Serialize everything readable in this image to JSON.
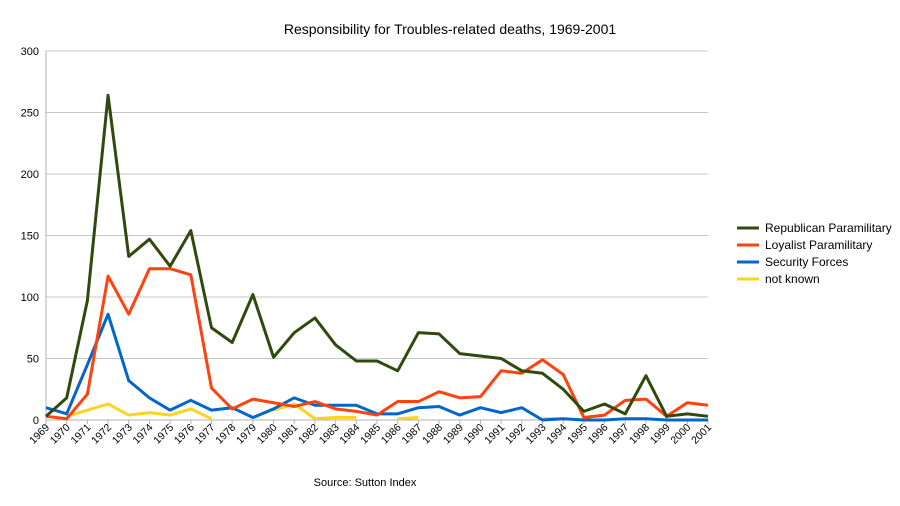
{
  "chart_data": {
    "type": "line",
    "title": "Responsibility for Troubles-related deaths, 1969-2001",
    "source": "Source: Sutton Index",
    "xlabel": "",
    "ylabel": "",
    "ylim": [
      0,
      300
    ],
    "yticks": [
      0,
      50,
      100,
      150,
      200,
      250,
      300
    ],
    "grid": "horizontal",
    "legend_position": "right",
    "x": [
      "1969",
      "1970",
      "1971",
      "1972",
      "1973",
      "1974",
      "1975",
      "1976",
      "1977",
      "1978",
      "1979",
      "1980",
      "1981",
      "1982",
      "1983",
      "1984",
      "1985",
      "1986",
      "1987",
      "1988",
      "1989",
      "1990",
      "1991",
      "1992",
      "1993",
      "1994",
      "1995",
      "1996",
      "1997",
      "1998",
      "1999",
      "2000",
      "2001"
    ],
    "series": [
      {
        "name": "Republican Paramilitary",
        "color": "#2f4a0c",
        "values": [
          3,
          18,
          97,
          264,
          133,
          147,
          125,
          154,
          75,
          63,
          102,
          51,
          71,
          83,
          61,
          48,
          48,
          40,
          71,
          70,
          54,
          52,
          50,
          40,
          38,
          25,
          7,
          13,
          5,
          36,
          3,
          5,
          3
        ]
      },
      {
        "name": "Loyalist Paramilitary",
        "color": "#ff420e",
        "values": [
          3,
          1,
          21,
          117,
          86,
          123,
          123,
          118,
          26,
          9,
          17,
          14,
          11,
          15,
          9,
          7,
          4,
          15,
          15,
          23,
          18,
          19,
          40,
          38,
          49,
          37,
          2,
          4,
          16,
          17,
          3,
          14,
          12
        ]
      },
      {
        "name": "Security Forces",
        "color": "#0066cc",
        "values": [
          10,
          5,
          45,
          86,
          32,
          18,
          8,
          16,
          8,
          10,
          2,
          9,
          18,
          12,
          12,
          12,
          5,
          5,
          10,
          11,
          4,
          10,
          6,
          10,
          0,
          1,
          0,
          0,
          1,
          1,
          0,
          0,
          0
        ]
      },
      {
        "name": "not known",
        "color": "#ffd320",
        "values": [
          null,
          3,
          8,
          13,
          4,
          6,
          4,
          9,
          1,
          null,
          null,
          8,
          13,
          1,
          2,
          2,
          null,
          1,
          2,
          null,
          null,
          null,
          null,
          null,
          1,
          1,
          null,
          null,
          null,
          null,
          1,
          null,
          null
        ]
      }
    ]
  }
}
